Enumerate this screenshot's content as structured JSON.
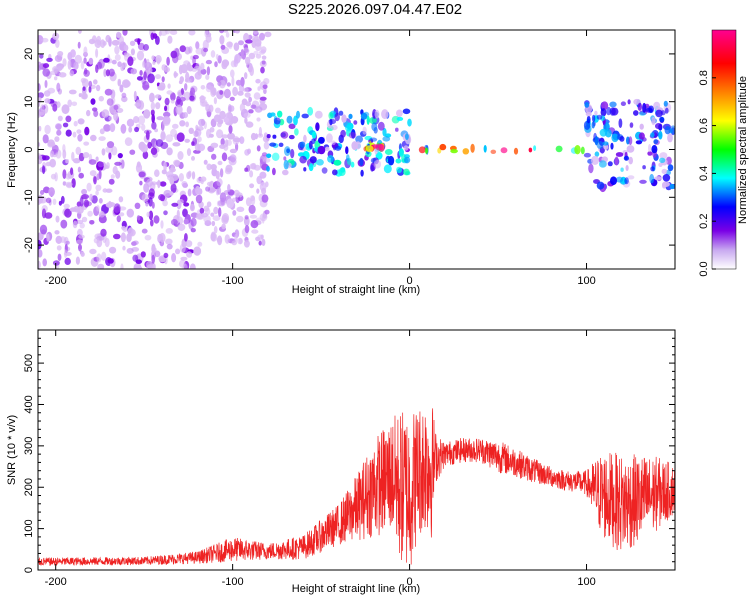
{
  "title": "S225.2026.097.04.47.E02",
  "chart_data": [
    {
      "type": "heatmap",
      "xlabel": "Height of straight line (km)",
      "ylabel": "Frequency (Hz)",
      "xlim": [
        -210,
        150
      ],
      "ylim": [
        -25,
        25
      ],
      "xticks": [
        -200,
        -100,
        0,
        100
      ],
      "yticks": [
        -20,
        -10,
        0,
        10,
        20
      ],
      "colorbar": {
        "label": "Normalized spectral amplitude",
        "range": [
          0,
          1
        ],
        "ticks": [
          "0.0",
          "0.2",
          "0.4",
          "0.6",
          "0.8"
        ],
        "tick_values": [
          0.0,
          0.2,
          0.4,
          0.6,
          0.8
        ],
        "colormap": [
          "#ffffff",
          "#7a00e6",
          "#0000ff",
          "#00ffff",
          "#00ff00",
          "#ffff00",
          "#ff8000",
          "#ff0000",
          "#ff00a0"
        ]
      },
      "features": [
        {
          "x_range": [
            -210,
            -120
          ],
          "freq_range": [
            -25,
            25
          ],
          "amplitude": 0.12,
          "description": "broadband"
        },
        {
          "x_range": [
            -120,
            -80
          ],
          "freq_range": [
            -20,
            25
          ],
          "amplitude": 0.08
        },
        {
          "x_range": [
            -80,
            0
          ],
          "freq_range": [
            -5,
            8
          ],
          "amplitude": 0.35
        },
        {
          "x_range": [
            -25,
            -15
          ],
          "freq_range": [
            0,
            1
          ],
          "amplitude": 0.9
        },
        {
          "x_range": [
            5,
            100
          ],
          "freq_range": [
            -0.5,
            0.5
          ],
          "amplitude": 0.85
        },
        {
          "x_range": [
            100,
            150
          ],
          "freq_range": [
            -8,
            10
          ],
          "amplitude": 0.3
        }
      ]
    },
    {
      "type": "line",
      "xlabel": "Height of straight line (km)",
      "ylabel": "SNR (10 * v/v)",
      "xlim": [
        -210,
        150
      ],
      "ylim": [
        0,
        580
      ],
      "xticks": [
        -200,
        -100,
        0,
        100
      ],
      "yticks": [
        0,
        100,
        200,
        300,
        400,
        500
      ],
      "color": "#ee2222",
      "envelope": {
        "x": [
          -210,
          -150,
          -120,
          -100,
          -80,
          -60,
          -40,
          -30,
          -20,
          -10,
          -5,
          0,
          5,
          10,
          12,
          15,
          20,
          30,
          40,
          50,
          60,
          70,
          80,
          90,
          100,
          105,
          110,
          120,
          130,
          140,
          150
        ],
        "mid": [
          20,
          22,
          30,
          50,
          45,
          55,
          110,
          150,
          200,
          230,
          200,
          190,
          240,
          260,
          250,
          270,
          280,
          290,
          290,
          275,
          260,
          240,
          225,
          215,
          210,
          190,
          180,
          160,
          170,
          185,
          195
        ],
        "amp": [
          10,
          10,
          15,
          30,
          20,
          30,
          50,
          80,
          120,
          140,
          190,
          200,
          160,
          170,
          190,
          60,
          30,
          30,
          30,
          40,
          35,
          30,
          25,
          25,
          30,
          80,
          110,
          120,
          110,
          90,
          60
        ]
      }
    }
  ]
}
